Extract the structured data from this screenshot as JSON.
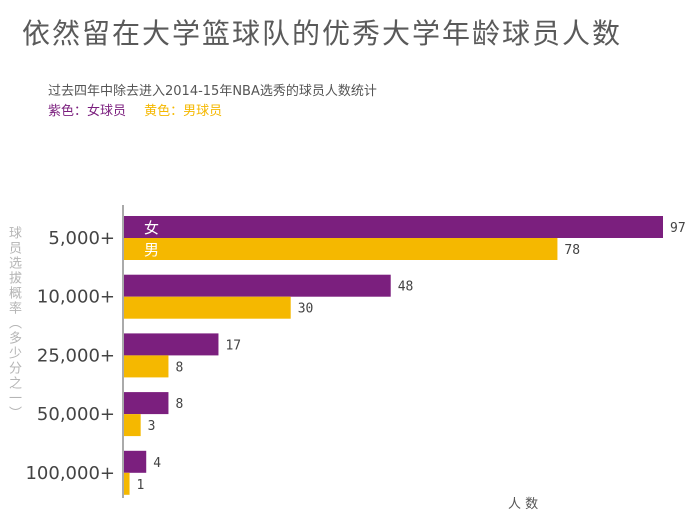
{
  "chart_data": {
    "type": "bar",
    "orientation": "horizontal",
    "title": "依然留在大学篮球队的优秀大学年龄球员人数",
    "subtitle": "过去四年中除去进入2014-15年NBA选秀的球员人数统计",
    "legend_female": "紫色：女球员",
    "legend_male": "黄色：男球员",
    "ylabel": "球员选拔概率（多少分之一）",
    "xlabel": "人 数",
    "categories": [
      "5,000+",
      "10,000+",
      "25,000+",
      "50,000+",
      "100,000+"
    ],
    "series": [
      {
        "name": "女",
        "color": "#7b1f7e",
        "values": [
          97,
          48,
          17,
          8,
          4
        ]
      },
      {
        "name": "男",
        "color": "#f5b800",
        "values": [
          78,
          30,
          8,
          3,
          1
        ]
      }
    ],
    "xlim": [
      0,
      97
    ]
  }
}
